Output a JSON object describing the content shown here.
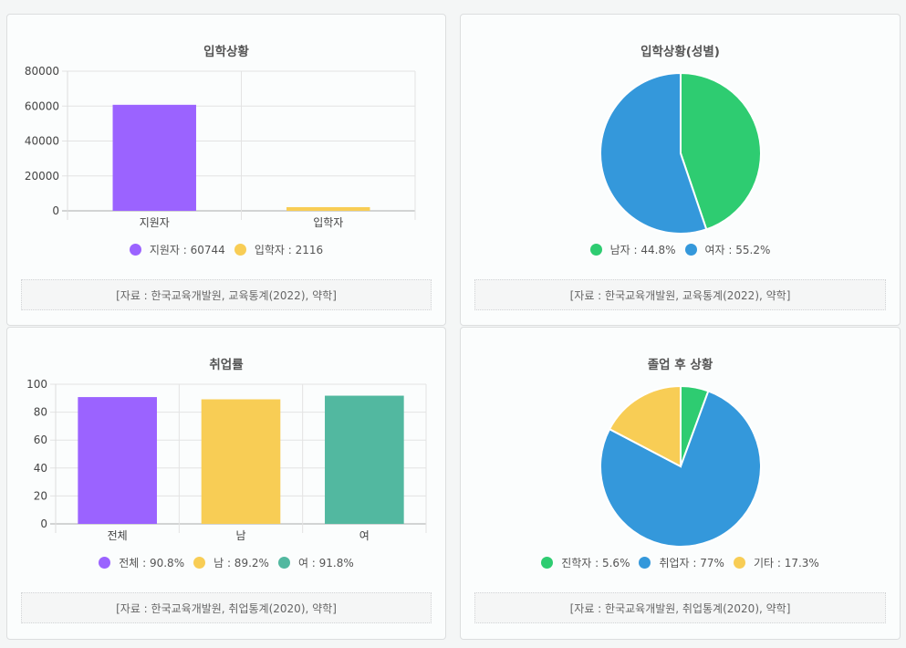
{
  "colors": {
    "purple": "#9b63ff",
    "yellow": "#f8cd55",
    "green": "#2ecc71",
    "blue": "#3498db",
    "teal": "#52b8a0"
  },
  "panels": [
    {
      "title": "입학상황",
      "source": "[자료 : 한국교육개발원, 교육통계(2022), 약학]",
      "legend": [
        {
          "label": "지원자 : 60744",
          "color": "#9b63ff"
        },
        {
          "label": "입학자 : 2116",
          "color": "#f8cd55"
        }
      ]
    },
    {
      "title": "입학상황(성별)",
      "source": "[자료 : 한국교육개발원, 교육통계(2022), 약학]",
      "legend": [
        {
          "label": "남자 : 44.8%",
          "color": "#2ecc71"
        },
        {
          "label": "여자 : 55.2%",
          "color": "#3498db"
        }
      ]
    },
    {
      "title": "취업률",
      "source": "[자료 : 한국교육개발원, 취업통계(2020), 약학]",
      "legend": [
        {
          "label": "전체 : 90.8%",
          "color": "#9b63ff"
        },
        {
          "label": "남 : 89.2%",
          "color": "#f8cd55"
        },
        {
          "label": "여 : 91.8%",
          "color": "#52b8a0"
        }
      ]
    },
    {
      "title": "졸업 후 상황",
      "source": "[자료 : 한국교육개발원, 취업통계(2020), 약학]",
      "legend": [
        {
          "label": "진학자 : 5.6%",
          "color": "#2ecc71"
        },
        {
          "label": "취업자 : 77%",
          "color": "#3498db"
        },
        {
          "label": "기타 : 17.3%",
          "color": "#f8cd55"
        }
      ]
    }
  ],
  "chart_data": [
    {
      "type": "bar",
      "title": "입학상황",
      "categories": [
        "지원자",
        "입학자"
      ],
      "values": [
        60744,
        2116
      ],
      "colors": [
        "#9b63ff",
        "#f8cd55"
      ],
      "ylim": [
        0,
        80000
      ],
      "yticks": [
        0,
        20000,
        40000,
        60000,
        80000
      ],
      "grid": true
    },
    {
      "type": "pie",
      "title": "입학상황(성별)",
      "labels": [
        "남자",
        "여자"
      ],
      "values": [
        44.8,
        55.2
      ],
      "colors": [
        "#2ecc71",
        "#3498db"
      ]
    },
    {
      "type": "bar",
      "title": "취업률",
      "categories": [
        "전체",
        "남",
        "여"
      ],
      "values": [
        90.8,
        89.2,
        91.8
      ],
      "colors": [
        "#9b63ff",
        "#f8cd55",
        "#52b8a0"
      ],
      "ylim": [
        0,
        100
      ],
      "yticks": [
        0,
        20,
        40,
        60,
        80,
        100
      ],
      "grid": true
    },
    {
      "type": "pie",
      "title": "졸업 후 상황",
      "labels": [
        "진학자",
        "취업자",
        "기타"
      ],
      "values": [
        5.6,
        77,
        17.3
      ],
      "colors": [
        "#2ecc71",
        "#3498db",
        "#f8cd55"
      ]
    }
  ]
}
